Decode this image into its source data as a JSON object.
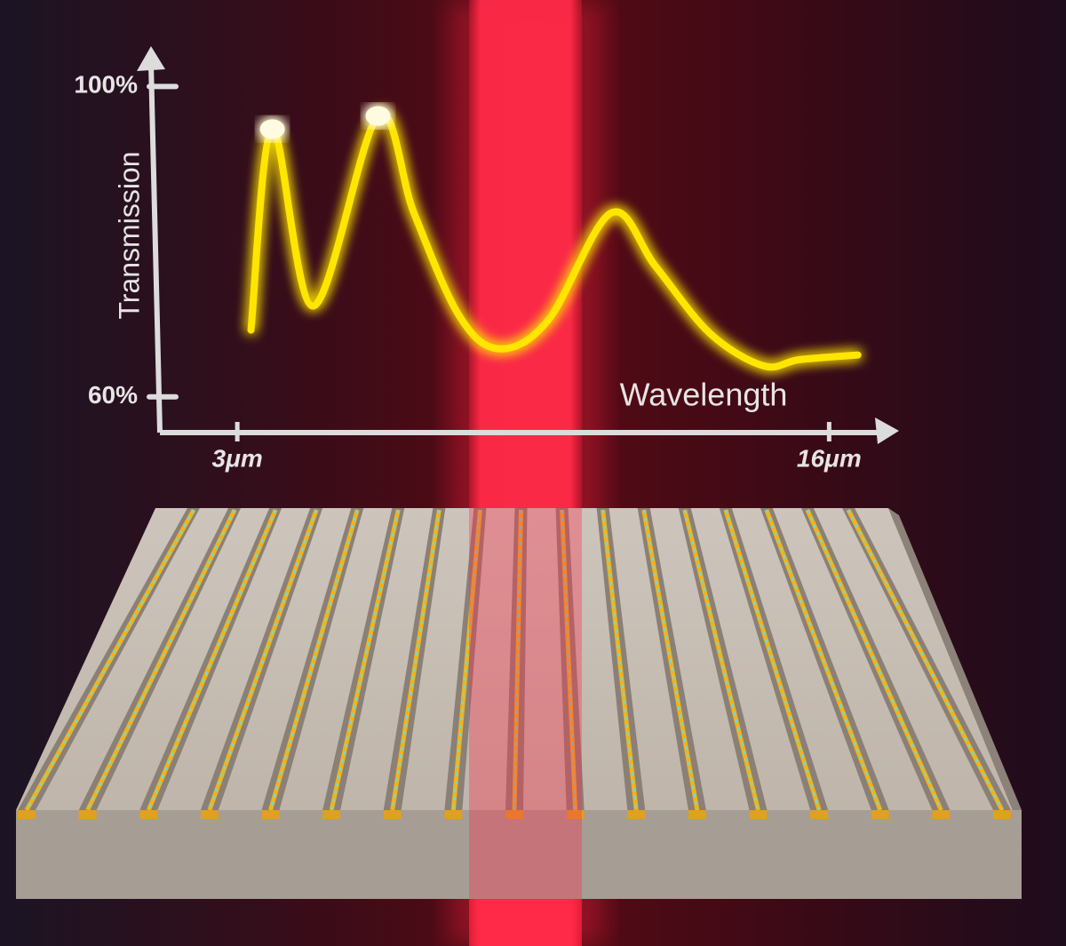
{
  "chart_data": {
    "type": "line",
    "x_label": "Wavelength",
    "y_label": "Transmission",
    "x": [
      3.3,
      3.77,
      4.67,
      6.09,
      6.88,
      7.87,
      8.75,
      9.83,
      11.21,
      12.19,
      13.38,
      14.56,
      15.35,
      16.63
    ],
    "values": [
      68.6,
      94.5,
      71.7,
      96.2,
      83.7,
      70.5,
      66.2,
      69.9,
      83.7,
      76.8,
      68.2,
      64.0,
      64.8,
      65.4
    ],
    "color": "#ffe600",
    "xlim": [
      1.3,
      17.3
    ],
    "ylim": [
      55.4,
      103.7
    ],
    "xticks": [
      {
        "value": 3,
        "label": "3μm"
      },
      {
        "value": 16,
        "label": "16μm"
      }
    ],
    "yticks": [
      {
        "value": 60,
        "label": "60%"
      },
      {
        "value": 100,
        "label": "100%"
      }
    ]
  }
}
